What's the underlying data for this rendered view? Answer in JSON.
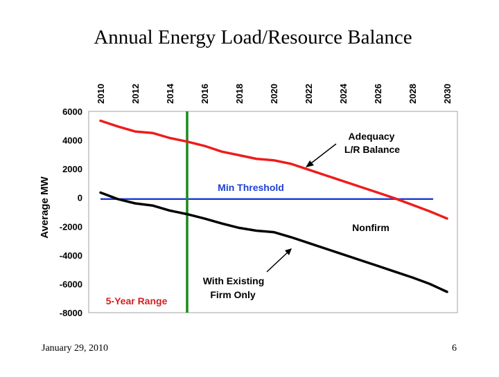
{
  "slide": {
    "title": "Annual Energy Load/Resource Balance",
    "footer_date": "January 29, 2010",
    "page_number": "6"
  },
  "colors": {
    "adequacy": "#ee1c1c",
    "existing": "#000000",
    "threshold": "#1f3fd6",
    "range_line": "#1a8a1a",
    "range_label": "#d42020",
    "threshold_label": "#1f3fd6"
  },
  "chart_data": {
    "type": "line",
    "title": "",
    "ylabel": "Average MW",
    "xlabel": "",
    "xlim": [
      2010,
      2030
    ],
    "ylim": [
      -8000,
      6000
    ],
    "x_ticks": [
      "2010",
      "2012",
      "2014",
      "2016",
      "2018",
      "2020",
      "2022",
      "2024",
      "2026",
      "2028",
      "2030"
    ],
    "y_ticks": [
      "6000",
      "4000",
      "2000",
      "0",
      "-2000",
      "-4000",
      "-6000",
      "-8000"
    ],
    "series": [
      {
        "name": "Adequacy L/R Balance",
        "x": [
          2010,
          2011,
          2012,
          2013,
          2014,
          2015,
          2016,
          2017,
          2018,
          2019,
          2020,
          2021,
          2022,
          2023,
          2024,
          2025,
          2026,
          2027,
          2028,
          2029,
          2030
        ],
        "values": [
          5350,
          4950,
          4600,
          4500,
          4150,
          3900,
          3600,
          3200,
          2950,
          2700,
          2600,
          2350,
          1950,
          1550,
          1150,
          750,
          350,
          -50,
          -500,
          -950,
          -1450
        ]
      },
      {
        "name": "With Existing Firm Only",
        "x": [
          2010,
          2011,
          2012,
          2013,
          2014,
          2015,
          2016,
          2017,
          2018,
          2019,
          2020,
          2021,
          2022,
          2023,
          2024,
          2025,
          2026,
          2027,
          2028,
          2029,
          2030
        ],
        "values": [
          350,
          -100,
          -400,
          -550,
          -900,
          -1150,
          -1450,
          -1800,
          -2100,
          -2300,
          -2400,
          -2750,
          -3150,
          -3550,
          -3950,
          -4350,
          -4750,
          -5150,
          -5550,
          -6000,
          -6550
        ]
      },
      {
        "name": "Min Threshold",
        "x": [
          2010,
          2029.2
        ],
        "values": [
          -100,
          -100
        ]
      }
    ],
    "markers": {
      "five_year_range_end": 2015
    },
    "annotations": {
      "adequacy_line1": "Adequacy",
      "adequacy_line2": "L/R Balance",
      "threshold": "Min Threshold",
      "nonfirm": "Nonfirm",
      "existing_line1": "With Existing",
      "existing_line2": "Firm Only",
      "range": "5-Year Range"
    }
  }
}
